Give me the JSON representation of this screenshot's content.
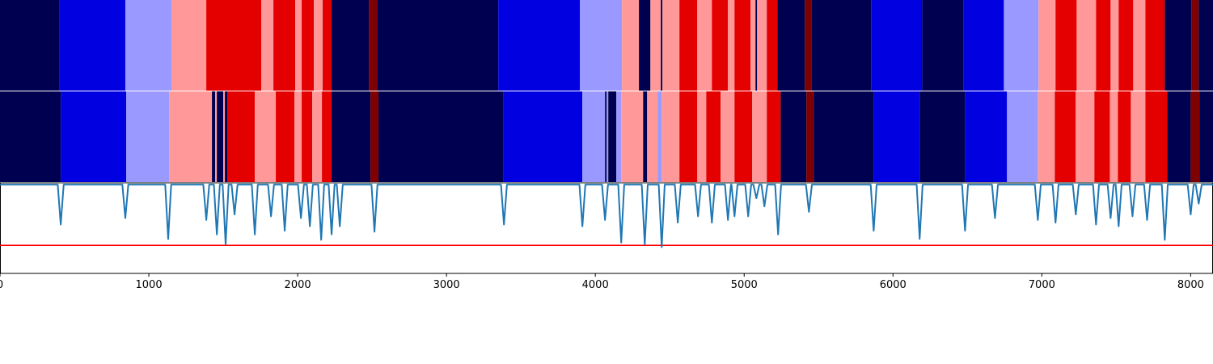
{
  "chart_data": {
    "type": "line",
    "xlim": [
      0,
      8150
    ],
    "ylim": [
      0,
      1
    ],
    "xticks": [
      0,
      1000,
      2000,
      3000,
      4000,
      5000,
      6000,
      7000,
      8000
    ],
    "color": "#1f77b4",
    "threshold": 0.31,
    "threshold_color": "#ff0000",
    "x": [
      0,
      388,
      408,
      428,
      822,
      842,
      862,
      1110,
      1130,
      1150,
      1366,
      1386,
      1406,
      1437,
      1457,
      1477,
      1496,
      1516,
      1536,
      1556,
      1576,
      1596,
      1692,
      1712,
      1732,
      1801,
      1821,
      1841,
      1893,
      1913,
      1933,
      2002,
      2022,
      2042,
      2062,
      2082,
      2102,
      2138,
      2158,
      2178,
      2208,
      2228,
      2248,
      2263,
      2283,
      2303,
      2496,
      2516,
      2536,
      3366,
      3386,
      3406,
      3893,
      3913,
      3933,
      4045,
      4065,
      4085,
      4154,
      4174,
      4194,
      4312,
      4332,
      4352,
      4426,
      4446,
      4466,
      4534,
      4554,
      4574,
      4670,
      4690,
      4710,
      4763,
      4783,
      4803,
      4871,
      4891,
      4911,
      4915,
      4935,
      4955,
      5007,
      5027,
      5047,
      5062,
      5082,
      5102,
      5116,
      5136,
      5156,
      5208,
      5228,
      5248,
      5415,
      5435,
      5455,
      5850,
      5870,
      5890,
      6159,
      6179,
      6199,
      6464,
      6484,
      6504,
      6665,
      6685,
      6705,
      6953,
      6973,
      6993,
      7072,
      7092,
      7112,
      7208,
      7228,
      7248,
      7344,
      7364,
      7384,
      7442,
      7462,
      7482,
      7496,
      7516,
      7536,
      7589,
      7609,
      7629,
      7687,
      7707,
      7727,
      7806,
      7826,
      7846,
      7980,
      8000,
      8020,
      8034,
      8054,
      8074,
      8150
    ],
    "values": [
      0.98,
      0.98,
      0.54,
      0.98,
      0.98,
      0.61,
      0.98,
      0.98,
      0.38,
      0.98,
      0.98,
      0.59,
      0.98,
      0.98,
      0.43,
      0.98,
      0.98,
      0.32,
      0.98,
      0.98,
      0.65,
      0.98,
      0.98,
      0.43,
      0.98,
      0.98,
      0.63,
      0.98,
      0.98,
      0.47,
      0.98,
      0.98,
      0.61,
      0.98,
      0.98,
      0.52,
      0.98,
      0.98,
      0.37,
      0.98,
      0.98,
      0.43,
      0.98,
      0.98,
      0.52,
      0.98,
      0.98,
      0.46,
      0.98,
      0.98,
      0.54,
      0.98,
      0.98,
      0.52,
      0.98,
      0.98,
      0.59,
      0.98,
      0.98,
      0.34,
      0.98,
      0.98,
      0.32,
      0.98,
      0.98,
      0.29,
      0.98,
      0.98,
      0.56,
      0.98,
      0.98,
      0.63,
      0.98,
      0.98,
      0.56,
      0.98,
      0.98,
      0.59,
      0.98,
      0.98,
      0.63,
      0.98,
      0.98,
      0.63,
      0.98,
      0.98,
      0.83,
      0.98,
      0.98,
      0.74,
      0.98,
      0.98,
      0.43,
      0.98,
      0.98,
      0.68,
      0.98,
      0.98,
      0.47,
      0.98,
      0.98,
      0.38,
      0.98,
      0.98,
      0.47,
      0.98,
      0.98,
      0.61,
      0.98,
      0.98,
      0.59,
      0.98,
      0.98,
      0.56,
      0.98,
      0.98,
      0.65,
      0.98,
      0.98,
      0.54,
      0.98,
      0.98,
      0.61,
      0.98,
      0.98,
      0.52,
      0.98,
      0.98,
      0.63,
      0.98,
      0.98,
      0.59,
      0.98,
      0.98,
      0.37,
      0.98,
      0.98,
      0.65,
      0.98,
      0.98,
      0.77,
      0.98,
      0.98
    ],
    "segments": [
      {
        "edges": [
          0,
          397,
          842,
          1152,
          1386,
          1755,
          1837,
          1984,
          2027,
          2109,
          2168,
          2228,
          2478,
          2533,
          3348,
          3897,
          4179,
          4293,
          4370,
          4440,
          4451,
          4565,
          4685,
          4783,
          4891,
          4935,
          5043,
          5076,
          5087,
          5152,
          5223,
          5408,
          5451,
          5853,
          6196,
          6473,
          6745,
          6978,
          7092,
          7234,
          7364,
          7462,
          7516,
          7614,
          7696,
          7826,
          8005,
          8054,
          8150
        ],
        "colors": [
          "#000050",
          "#0000e0",
          "#9999ff",
          "#ff9999",
          "#e50000",
          "#ff9999",
          "#e50000",
          "#ff9999",
          "#e50000",
          "#ff9999",
          "#e50000",
          "#000050",
          "#7f0000",
          "#000050",
          "#0000e0",
          "#9999ff",
          "#ff9999",
          "#000050",
          "#ff9999",
          "#000050",
          "#ff9999",
          "#e50000",
          "#ff9999",
          "#e50000",
          "#ff9999",
          "#e50000",
          "#ff9999",
          "#000050",
          "#ff9999",
          "#e50000",
          "#000050",
          "#7f0000",
          "#000050",
          "#0000e0",
          "#000050",
          "#0000e0",
          "#9999ff",
          "#ff9999",
          "#e50000",
          "#ff9999",
          "#e50000",
          "#ff9999",
          "#e50000",
          "#ff9999",
          "#e50000",
          "#000050",
          "#7f0000",
          "#000050"
        ]
      },
      {
        "edges": [
          0,
          408,
          848,
          1136,
          1424,
          1446,
          1457,
          1500,
          1511,
          1527,
          1712,
          1853,
          1978,
          2027,
          2098,
          2163,
          2228,
          2489,
          2543,
          3380,
          3913,
          4065,
          4076,
          4087,
          4141,
          4174,
          4321,
          4348,
          4418,
          4446,
          4565,
          4685,
          4745,
          4842,
          4935,
          5054,
          5152,
          5245,
          5418,
          5467,
          5870,
          6179,
          6484,
          6766,
          6973,
          7087,
          7228,
          7353,
          7457,
          7511,
          7598,
          7696,
          7842,
          8000,
          8060,
          8150
        ],
        "colors": [
          "#000050",
          "#0000e0",
          "#9999ff",
          "#ff9999",
          "#000050",
          "#ff9999",
          "#000050",
          "#ff9999",
          "#000050",
          "#e50000",
          "#ff9999",
          "#e50000",
          "#ff9999",
          "#e50000",
          "#ff9999",
          "#e50000",
          "#000050",
          "#7f0000",
          "#000050",
          "#0000e0",
          "#9999ff",
          "#000050",
          "#9999ff",
          "#000050",
          "#9999ff",
          "#ff9999",
          "#000050",
          "#ff9999",
          "#9999ff",
          "#ff9999",
          "#e50000",
          "#ff9999",
          "#e50000",
          "#ff9999",
          "#e50000",
          "#ff9999",
          "#e50000",
          "#000050",
          "#7f0000",
          "#000050",
          "#0000e0",
          "#000050",
          "#0000e0",
          "#9999ff",
          "#ff9999",
          "#e50000",
          "#ff9999",
          "#e50000",
          "#ff9999",
          "#e50000",
          "#ff9999",
          "#e50000",
          "#000050",
          "#7f0000",
          "#000050"
        ]
      }
    ]
  }
}
